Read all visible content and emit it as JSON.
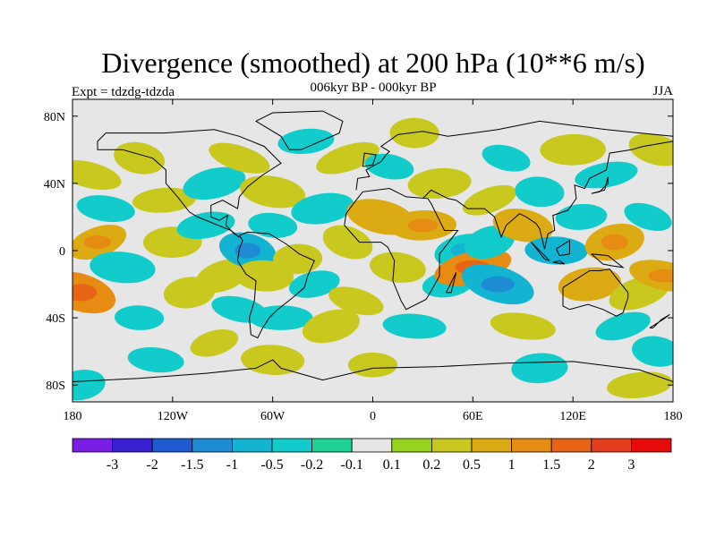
{
  "chart_data": {
    "type": "heatmap",
    "title": "Divergence (smoothed) at 200 hPa (10**6 m/s)",
    "subtitle": "006kyr BP - 000kyr BP",
    "left_label": "Expt = tdzdg-tdzda",
    "right_label": "JJA",
    "xlim": [
      -180,
      180
    ],
    "ylim": [
      -90,
      90
    ],
    "x_ticks": [
      -180,
      -120,
      -60,
      0,
      60,
      120,
      180
    ],
    "x_tick_labels": [
      "180",
      "120W",
      "60W",
      "0",
      "60E",
      "120E",
      "180"
    ],
    "y_ticks": [
      80,
      40,
      0,
      -40,
      -80
    ],
    "y_tick_labels": [
      "80N",
      "40N",
      "0",
      "40S",
      "80S"
    ],
    "colorbar": {
      "boundaries": [
        "-3",
        "-2",
        "-1.5",
        "-1",
        "-0.5",
        "-0.2",
        "-0.1",
        "0.1",
        "0.2",
        "0.5",
        "1",
        "1.5",
        "2",
        "3"
      ],
      "colors": [
        "#7a1ee6",
        "#3a1ed2",
        "#1e5ad2",
        "#1e8cd2",
        "#12b4d2",
        "#12cccc",
        "#1ed296",
        "#e6e6e6",
        "#96d21e",
        "#c8c81e",
        "#dcaa12",
        "#e68c12",
        "#e66414",
        "#e63c1e",
        "#e60a0a"
      ]
    },
    "fields": [
      {
        "lon": -165,
        "lat": 5,
        "value": 0.8
      },
      {
        "lon": -175,
        "lat": -25,
        "value": 1.0
      },
      {
        "lon": -170,
        "lat": 45,
        "value": 0.4
      },
      {
        "lon": -140,
        "lat": 55,
        "value": 0.4
      },
      {
        "lon": -160,
        "lat": 25,
        "value": -0.4
      },
      {
        "lon": -150,
        "lat": -10,
        "value": -0.4
      },
      {
        "lon": -140,
        "lat": -40,
        "value": -0.3
      },
      {
        "lon": -120,
        "lat": 5,
        "value": 0.4
      },
      {
        "lon": -125,
        "lat": 30,
        "value": 0.3
      },
      {
        "lon": -110,
        "lat": -25,
        "value": 0.4
      },
      {
        "lon": -100,
        "lat": 15,
        "value": -0.4
      },
      {
        "lon": -95,
        "lat": 40,
        "value": -0.3
      },
      {
        "lon": -95,
        "lat": -55,
        "value": 0.3
      },
      {
        "lon": -90,
        "lat": -15,
        "value": 0.3
      },
      {
        "lon": -80,
        "lat": 55,
        "value": 0.3
      },
      {
        "lon": -75,
        "lat": 0,
        "value": -0.7
      },
      {
        "lon": -80,
        "lat": -35,
        "value": -0.3
      },
      {
        "lon": -60,
        "lat": 35,
        "value": 0.4
      },
      {
        "lon": -60,
        "lat": 15,
        "value": -0.3
      },
      {
        "lon": -65,
        "lat": -15,
        "value": 0.4
      },
      {
        "lon": -55,
        "lat": -40,
        "value": -0.3
      },
      {
        "lon": -45,
        "lat": -5,
        "value": 0.3
      },
      {
        "lon": -40,
        "lat": 65,
        "value": -0.3
      },
      {
        "lon": -30,
        "lat": 25,
        "value": -0.3
      },
      {
        "lon": -35,
        "lat": -20,
        "value": -0.4
      },
      {
        "lon": -25,
        "lat": -45,
        "value": 0.4
      },
      {
        "lon": -15,
        "lat": 55,
        "value": 0.4
      },
      {
        "lon": -15,
        "lat": 5,
        "value": 0.4
      },
      {
        "lon": -10,
        "lat": -30,
        "value": 0.3
      },
      {
        "lon": 5,
        "lat": 20,
        "value": 0.6
      },
      {
        "lon": 10,
        "lat": 50,
        "value": -0.3
      },
      {
        "lon": 15,
        "lat": -10,
        "value": 0.3
      },
      {
        "lon": 25,
        "lat": -45,
        "value": -0.3
      },
      {
        "lon": 25,
        "lat": 70,
        "value": 0.3
      },
      {
        "lon": 30,
        "lat": 15,
        "value": 0.8
      },
      {
        "lon": 40,
        "lat": 40,
        "value": 0.3
      },
      {
        "lon": 45,
        "lat": -20,
        "value": -0.4
      },
      {
        "lon": 55,
        "lat": 0,
        "value": -0.5
      },
      {
        "lon": 60,
        "lat": -10,
        "value": 1.0
      },
      {
        "lon": 70,
        "lat": 5,
        "value": -0.4
      },
      {
        "lon": 70,
        "lat": 30,
        "value": 0.3
      },
      {
        "lon": 75,
        "lat": -20,
        "value": -0.8
      },
      {
        "lon": 80,
        "lat": 55,
        "value": -0.3
      },
      {
        "lon": 90,
        "lat": 15,
        "value": 0.5
      },
      {
        "lon": 90,
        "lat": -45,
        "value": 0.4
      },
      {
        "lon": 100,
        "lat": 35,
        "value": -0.3
      },
      {
        "lon": 110,
        "lat": 0,
        "value": -0.6
      },
      {
        "lon": 120,
        "lat": 60,
        "value": 0.4
      },
      {
        "lon": 125,
        "lat": 20,
        "value": -0.4
      },
      {
        "lon": 130,
        "lat": -20,
        "value": 0.6
      },
      {
        "lon": 140,
        "lat": 45,
        "value": -0.3
      },
      {
        "lon": 145,
        "lat": 5,
        "value": 0.8
      },
      {
        "lon": 150,
        "lat": -45,
        "value": -0.3
      },
      {
        "lon": 160,
        "lat": -25,
        "value": 0.3
      },
      {
        "lon": 165,
        "lat": 20,
        "value": -0.3
      },
      {
        "lon": 170,
        "lat": 60,
        "value": 0.3
      },
      {
        "lon": 175,
        "lat": -15,
        "value": 0.7
      },
      {
        "lon": 170,
        "lat": -60,
        "value": -0.3
      },
      {
        "lon": -130,
        "lat": -65,
        "value": -0.3
      },
      {
        "lon": -60,
        "lat": -65,
        "value": 0.3
      },
      {
        "lon": 0,
        "lat": -68,
        "value": 0.3
      },
      {
        "lon": 100,
        "lat": -70,
        "value": -0.3
      },
      {
        "lon": 160,
        "lat": -80,
        "value": 0.4
      },
      {
        "lon": -175,
        "lat": -80,
        "value": -0.3
      }
    ]
  }
}
